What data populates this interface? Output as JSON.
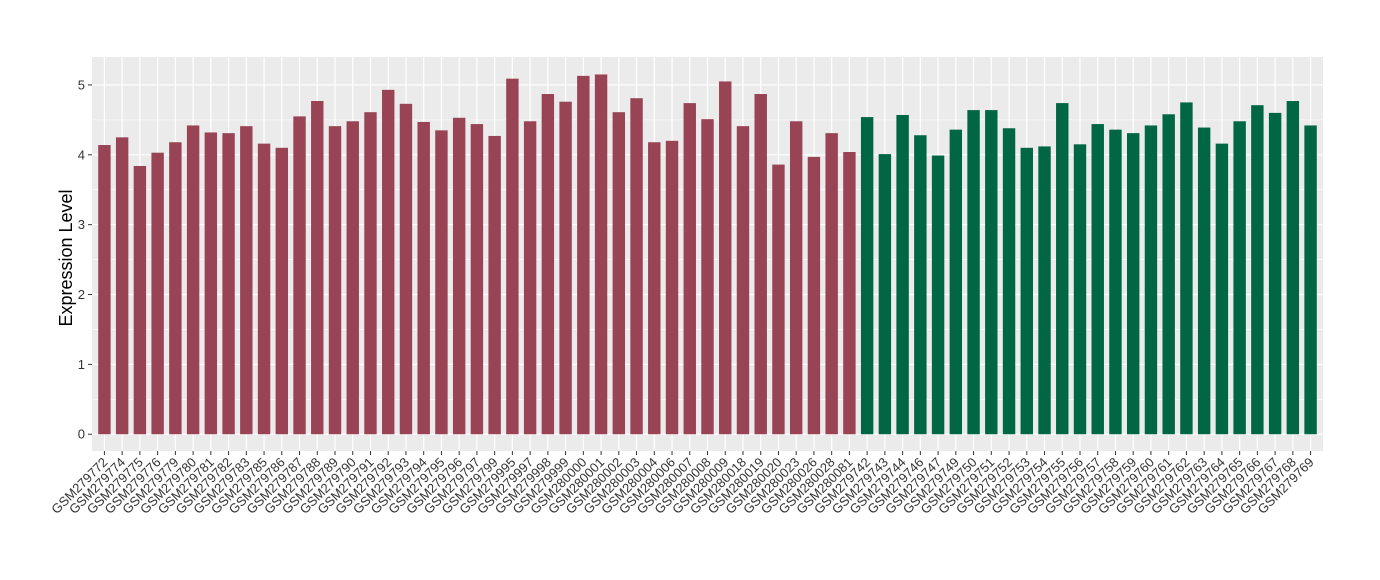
{
  "chart_data": {
    "type": "bar",
    "title": "",
    "xlabel": "",
    "ylabel": "Expression Level",
    "ylim": [
      -0.24,
      5.4
    ],
    "yticks": [
      0,
      1,
      2,
      3,
      4,
      5
    ],
    "ytick_labels": [
      "0",
      "1",
      "2",
      "3",
      "4",
      "5"
    ],
    "grid": true,
    "legend": "none",
    "colors": {
      "group1": "#994455",
      "group2": "#006644",
      "panel": "#ebebeb",
      "grid": "#ffffff"
    },
    "categories": [
      "GSM279772",
      "GSM279774",
      "GSM279775",
      "GSM279776",
      "GSM279779",
      "GSM279780",
      "GSM279781",
      "GSM279782",
      "GSM279783",
      "GSM279785",
      "GSM279786",
      "GSM279787",
      "GSM279788",
      "GSM279789",
      "GSM279790",
      "GSM279791",
      "GSM279792",
      "GSM279793",
      "GSM279794",
      "GSM279795",
      "GSM279796",
      "GSM279797",
      "GSM279799",
      "GSM279995",
      "GSM279997",
      "GSM279998",
      "GSM279999",
      "GSM280000",
      "GSM280001",
      "GSM280002",
      "GSM280003",
      "GSM280004",
      "GSM280006",
      "GSM280007",
      "GSM280008",
      "GSM280009",
      "GSM280018",
      "GSM280019",
      "GSM280020",
      "GSM280023",
      "GSM280026",
      "GSM280028",
      "GSM280081",
      "GSM279742",
      "GSM279743",
      "GSM279744",
      "GSM279746",
      "GSM279747",
      "GSM279749",
      "GSM279750",
      "GSM279751",
      "GSM279752",
      "GSM279753",
      "GSM279754",
      "GSM279755",
      "GSM279756",
      "GSM279757",
      "GSM279758",
      "GSM279759",
      "GSM279760",
      "GSM279761",
      "GSM279762",
      "GSM279763",
      "GSM279764",
      "GSM279765",
      "GSM279766",
      "GSM279767",
      "GSM279768",
      "GSM279769"
    ],
    "values": [
      4.14,
      4.25,
      3.84,
      4.03,
      4.18,
      4.42,
      4.32,
      4.31,
      4.41,
      4.16,
      4.1,
      4.55,
      4.77,
      4.41,
      4.48,
      4.61,
      4.93,
      4.73,
      4.47,
      4.35,
      4.53,
      4.44,
      4.27,
      5.09,
      4.48,
      4.87,
      4.76,
      5.13,
      5.15,
      4.61,
      4.81,
      4.18,
      4.2,
      4.74,
      4.51,
      5.05,
      4.41,
      4.87,
      3.86,
      4.48,
      3.97,
      4.31,
      4.04,
      4.54,
      4.01,
      4.57,
      4.28,
      3.99,
      4.36,
      4.64,
      4.64,
      4.38,
      4.1,
      4.12,
      4.74,
      4.15,
      4.44,
      4.36,
      4.31,
      4.42,
      4.58,
      4.75,
      4.39,
      4.16,
      4.48,
      4.71,
      4.6,
      4.77,
      4.42
    ],
    "groups": [
      "group1",
      "group1",
      "group1",
      "group1",
      "group1",
      "group1",
      "group1",
      "group1",
      "group1",
      "group1",
      "group1",
      "group1",
      "group1",
      "group1",
      "group1",
      "group1",
      "group1",
      "group1",
      "group1",
      "group1",
      "group1",
      "group1",
      "group1",
      "group1",
      "group1",
      "group1",
      "group1",
      "group1",
      "group1",
      "group1",
      "group1",
      "group1",
      "group1",
      "group1",
      "group1",
      "group1",
      "group1",
      "group1",
      "group1",
      "group1",
      "group1",
      "group1",
      "group1",
      "group2",
      "group2",
      "group2",
      "group2",
      "group2",
      "group2",
      "group2",
      "group2",
      "group2",
      "group2",
      "group2",
      "group2",
      "group2",
      "group2",
      "group2",
      "group2",
      "group2",
      "group2",
      "group2",
      "group2",
      "group2",
      "group2",
      "group2",
      "group2",
      "group2",
      "group2"
    ]
  }
}
